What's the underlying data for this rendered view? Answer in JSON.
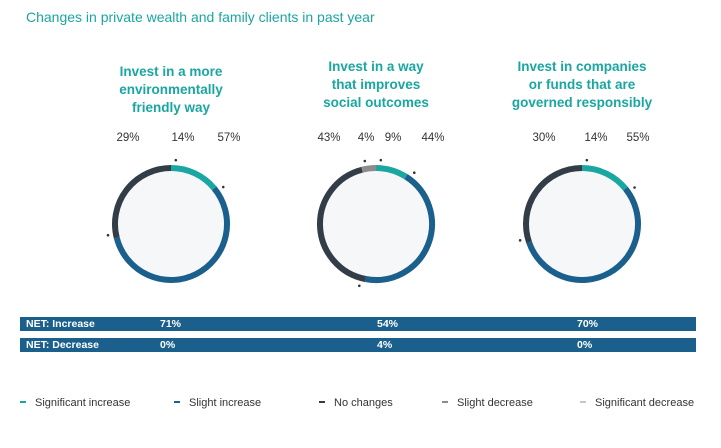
{
  "title": "Changes in private wealth and family clients in past year",
  "colors": {
    "significant_increase": "#1aa6a1",
    "slight_increase": "#1b5f8c",
    "no_changes": "#333d47",
    "slight_decrease": "#8c8c8c",
    "significant_decrease": "#c6c6c6",
    "donut_fill": "#f5f7f8",
    "title": "#1aa6a1"
  },
  "chart_data": {
    "type": "pie",
    "title": "Changes in private wealth and family clients in past year",
    "legend_position": "bottom",
    "legend": [
      "Significant increase",
      "Slight increase",
      "No changes",
      "Slight decrease",
      "Significant decrease"
    ],
    "charts": [
      {
        "title_lines": [
          "Invest in a more",
          "environmentally",
          "friendly way"
        ],
        "segments": [
          {
            "name": "Significant increase",
            "value": 14,
            "label": "14%"
          },
          {
            "name": "Slight increase",
            "value": 57,
            "label": "57%"
          },
          {
            "name": "No changes",
            "value": 29,
            "label": "29%"
          }
        ],
        "net_increase": "71%",
        "net_decrease": "0%"
      },
      {
        "title_lines": [
          "Invest in a way",
          "that improves",
          "social outcomes"
        ],
        "segments": [
          {
            "name": "Significant increase",
            "value": 9,
            "label": "9%"
          },
          {
            "name": "Slight increase",
            "value": 44,
            "label": "44%"
          },
          {
            "name": "No changes",
            "value": 43,
            "label": "43%"
          },
          {
            "name": "Slight decrease",
            "value": 4,
            "label": "4%"
          }
        ],
        "net_increase": "54%",
        "net_decrease": "4%"
      },
      {
        "title_lines": [
          "Invest in companies",
          "or funds that are",
          "governed responsibly"
        ],
        "segments": [
          {
            "name": "Significant increase",
            "value": 14,
            "label": "14%"
          },
          {
            "name": "Slight increase",
            "value": 55,
            "label": "55%"
          },
          {
            "name": "No changes",
            "value": 30,
            "label": "30%"
          }
        ],
        "net_increase": "70%",
        "net_decrease": "0%"
      }
    ]
  },
  "net": {
    "increase_label": "NET: Increase",
    "decrease_label": "NET: Decrease"
  }
}
